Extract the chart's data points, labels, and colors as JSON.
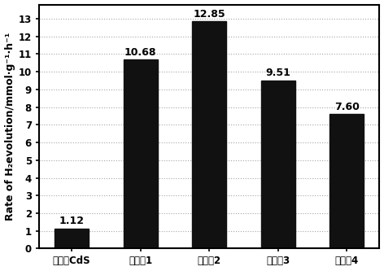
{
  "categories": [
    "未掺杂CdS",
    "实施例1",
    "实施例2",
    "实施例3",
    "实施例4"
  ],
  "values": [
    1.12,
    10.68,
    12.85,
    9.51,
    7.6
  ],
  "bar_color": "#111111",
  "bar_width": 0.5,
  "ylabel": "Rate of H₂evolution/mmol·g⁻¹·h⁻¹",
  "ylim": [
    0,
    13.8
  ],
  "yticks": [
    0,
    1,
    2,
    3,
    4,
    5,
    6,
    7,
    8,
    9,
    10,
    11,
    12,
    13
  ],
  "value_fontsize": 9,
  "tick_fontsize": 8.5,
  "ylabel_fontsize": 9
}
